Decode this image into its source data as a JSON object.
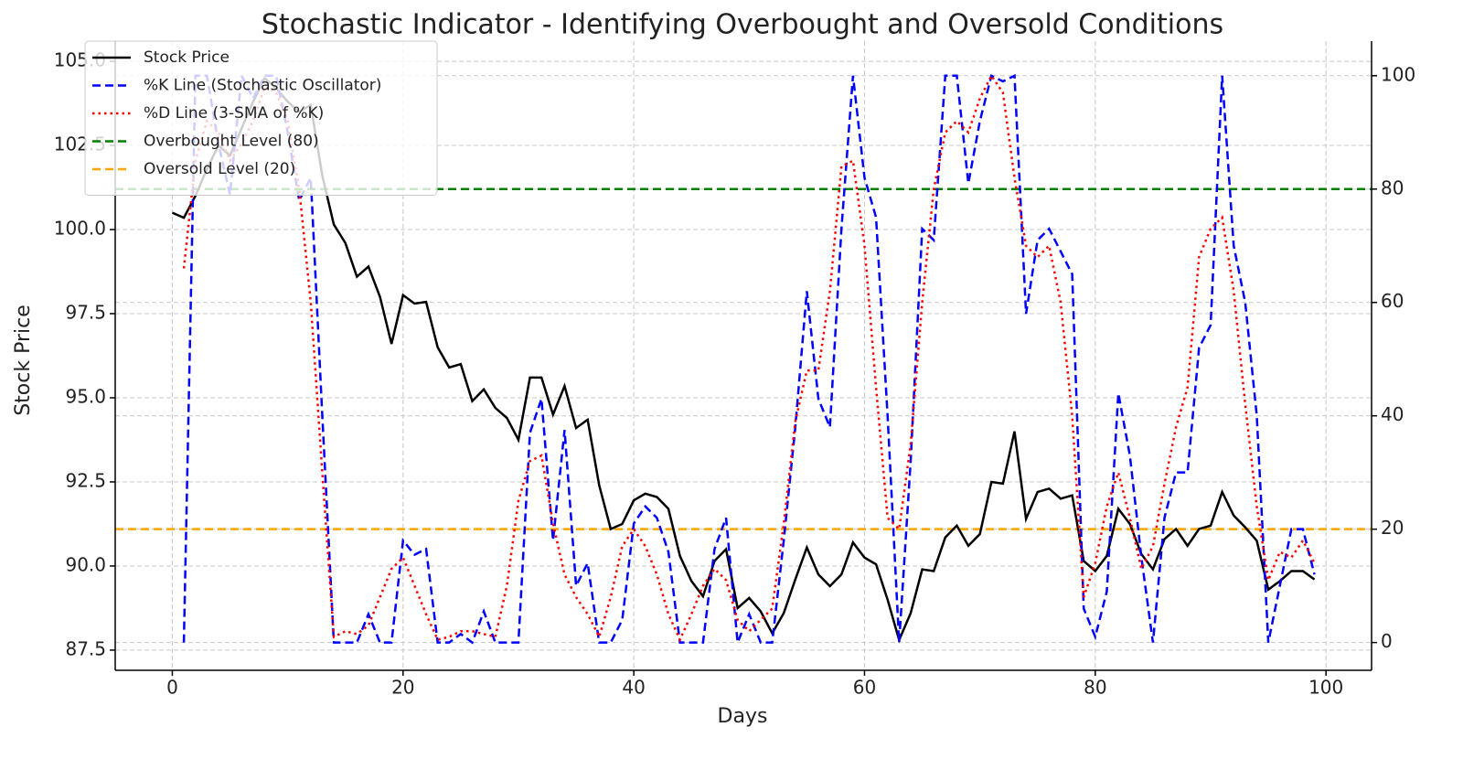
{
  "chart_data": {
    "type": "line",
    "title": "Stochastic Indicator - Identifying Overbought and Oversold Conditions",
    "xlabel": "Days",
    "ylabel": "Stock Price",
    "x": [
      0,
      1,
      2,
      3,
      4,
      5,
      6,
      7,
      8,
      9,
      10,
      11,
      12,
      13,
      14,
      15,
      16,
      17,
      18,
      19,
      20,
      21,
      22,
      23,
      24,
      25,
      26,
      27,
      28,
      29,
      30,
      31,
      32,
      33,
      34,
      35,
      36,
      37,
      38,
      39,
      40,
      41,
      42,
      43,
      44,
      45,
      46,
      47,
      48,
      49,
      50,
      51,
      52,
      53,
      54,
      55,
      56,
      57,
      58,
      59,
      60,
      61,
      62,
      63,
      64,
      65,
      66,
      67,
      68,
      69,
      70,
      71,
      72,
      73,
      74,
      75,
      76,
      77,
      78,
      79,
      80,
      81,
      82,
      83,
      84,
      85,
      86,
      87,
      88,
      89,
      90,
      91,
      92,
      93,
      94,
      95,
      96,
      97,
      98,
      99
    ],
    "series": [
      {
        "name": "Stock Price",
        "color": "#000000",
        "style": "solid",
        "axis": "y",
        "values": [
          100.5,
          100.35,
          101.0,
          101.8,
          102.5,
          102.2,
          103.0,
          103.8,
          104.5,
          104.2,
          103.8,
          103.5,
          103.7,
          101.6,
          100.15,
          99.6,
          98.6,
          98.9,
          98.0,
          96.6,
          98.05,
          97.8,
          97.85,
          96.5,
          95.9,
          96.0,
          94.9,
          95.25,
          94.7,
          94.4,
          93.75,
          95.6,
          95.6,
          94.5,
          95.35,
          94.1,
          94.35,
          92.4,
          91.1,
          91.25,
          91.95,
          92.15,
          92.05,
          91.7,
          90.3,
          89.55,
          89.1,
          90.15,
          90.5,
          88.75,
          89.05,
          88.65,
          88.0,
          88.6,
          89.6,
          90.55,
          89.75,
          89.4,
          89.75,
          90.7,
          90.25,
          90.05,
          89.0,
          87.8,
          88.6,
          89.9,
          89.85,
          90.85,
          91.2,
          90.6,
          90.95,
          92.5,
          92.45,
          94.0,
          91.4,
          92.2,
          92.3,
          92.0,
          92.1,
          90.15,
          89.85,
          90.3,
          91.7,
          91.25,
          90.35,
          89.9,
          90.8,
          91.1,
          90.6,
          91.1,
          91.2,
          92.2,
          91.5,
          91.15,
          90.75,
          89.3,
          89.55,
          89.85,
          89.85,
          89.6
        ]
      },
      {
        "name": "%K Line (Stochastic Oscillator)",
        "color": "#0000ff",
        "style": "dashed",
        "axis": "y2",
        "values": [
          null,
          0,
          100,
          100,
          88,
          79,
          100,
          96,
          100,
          100,
          90,
          78,
          82,
          40,
          0,
          0,
          0,
          5,
          0,
          0,
          18,
          15.5,
          16.5,
          0,
          0,
          1.5,
          0,
          5.5,
          0,
          0,
          0,
          37,
          43,
          18,
          37.5,
          10,
          14,
          0,
          0,
          4,
          21,
          24,
          22,
          16,
          0,
          0,
          0,
          16.5,
          22,
          0,
          5,
          0,
          0,
          18,
          38,
          62,
          43,
          38,
          73,
          100,
          82,
          75,
          40,
          0,
          32,
          73,
          71,
          100,
          100,
          81,
          92,
          100,
          99,
          100,
          58,
          71,
          73,
          69,
          65,
          6,
          1,
          9,
          44,
          33,
          15,
          0,
          22,
          30,
          30,
          52,
          56,
          100,
          70,
          60,
          40,
          0,
          10,
          20,
          20,
          12
        ]
      },
      {
        "name": "%D Line (3-SMA of %K)",
        "color": "#ff0000",
        "style": "dotted",
        "axis": "y2",
        "values": [
          null,
          66,
          85,
          92,
          90,
          85,
          88,
          92,
          98,
          97,
          92,
          80,
          60,
          30,
          1,
          2,
          1.5,
          3,
          8,
          13,
          15,
          10,
          5,
          0.5,
          1,
          2,
          2,
          1.5,
          1,
          10,
          25,
          32,
          33,
          21,
          12,
          8,
          5,
          1,
          8,
          17,
          20,
          17,
          12,
          5,
          0.5,
          5,
          10,
          13,
          11,
          4,
          2,
          4,
          6,
          21,
          39,
          48,
          48,
          62,
          84,
          85,
          70,
          45,
          22,
          20,
          35,
          60,
          80,
          90,
          92,
          90,
          96,
          100,
          97,
          82,
          70,
          68,
          70,
          60,
          40,
          8,
          14,
          24,
          30,
          22,
          13,
          17,
          28,
          38,
          45,
          68,
          73,
          75,
          62,
          42,
          24,
          11,
          16,
          15,
          18,
          14
        ]
      }
    ],
    "hlines": [
      {
        "name": "Overbought Level (80)",
        "color": "#008000",
        "style": "dashed",
        "axis": "y2",
        "value": 80
      },
      {
        "name": "Oversold Level (20)",
        "color": "#ffa500",
        "style": "dashed",
        "axis": "y2",
        "value": 20
      }
    ],
    "xlim": [
      -4.95,
      103.95
    ],
    "xticks": [
      0,
      20,
      40,
      60,
      80,
      100
    ],
    "ylim": [
      86.9,
      105.6
    ],
    "yticks": [
      87.5,
      {
        "value": 90,
        "label": "90.0"
      },
      92.5,
      {
        "value": 95,
        "label": "95.0"
      },
      97.5,
      {
        "value": 100,
        "label": "100.0"
      },
      102.5,
      {
        "value": 105,
        "label": "105.0"
      }
    ],
    "y2lim": [
      -4.9,
      106.1
    ],
    "y2ticks": [
      0,
      20,
      40,
      60,
      80,
      100
    ],
    "grid": true,
    "legend": "upper left"
  }
}
